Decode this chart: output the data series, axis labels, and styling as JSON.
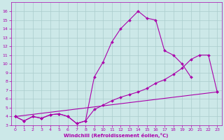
{
  "xlabel": "Windchill (Refroidissement éolien,°C)",
  "curve1_x": [
    0,
    1,
    2,
    3,
    4,
    5,
    6,
    7,
    8,
    9,
    10,
    11,
    12,
    13,
    14,
    15,
    16,
    17,
    18,
    19,
    20
  ],
  "curve1_y": [
    4.0,
    3.5,
    4.0,
    3.8,
    4.2,
    4.3,
    4.0,
    3.2,
    3.5,
    8.5,
    10.2,
    12.5,
    14.0,
    15.0,
    16.0,
    15.2,
    15.0,
    11.5,
    11.0,
    10.0,
    8.5
  ],
  "curve2_x": [
    0,
    1,
    2,
    3,
    4,
    5,
    6,
    7,
    8,
    9,
    10,
    11,
    12,
    13,
    14,
    15,
    16,
    17,
    18,
    19,
    20,
    21,
    22,
    23
  ],
  "curve2_y": [
    4.0,
    3.5,
    4.0,
    3.8,
    4.2,
    4.3,
    4.0,
    3.2,
    3.5,
    4.8,
    5.3,
    5.8,
    6.2,
    6.5,
    6.8,
    7.2,
    7.8,
    8.2,
    8.8,
    9.5,
    10.5,
    11.0,
    11.0,
    6.8
  ],
  "curve3_x": [
    0,
    23
  ],
  "curve3_y": [
    4.0,
    6.8
  ],
  "color": "#aa00aa",
  "bg_color": "#cce8e8",
  "grid_color": "#aacccc",
  "ylim_min": 3,
  "ylim_max": 17,
  "xlim_min": 0,
  "xlim_max": 23
}
